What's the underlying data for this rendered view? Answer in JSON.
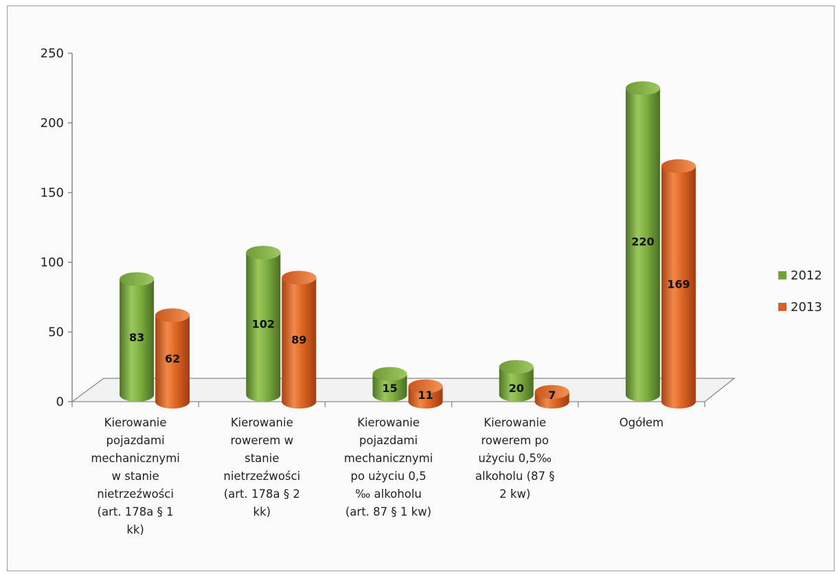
{
  "chart_data": {
    "type": "bar",
    "title": "",
    "xlabel": "",
    "ylabel": "",
    "ylim": [
      0,
      250
    ],
    "yticks": [
      0,
      50,
      100,
      150,
      200,
      250
    ],
    "grid": false,
    "legend_position": "right",
    "categories": [
      [
        "Kierowanie",
        "pojazdami",
        "mechanicznymi",
        "w stanie",
        "nietrzeźwości",
        "(art. 178a § 1",
        "kk)"
      ],
      [
        "Kierowanie",
        "rowerem w",
        "stanie",
        "nietrzeźwości",
        "(art. 178a §  2",
        "kk)"
      ],
      [
        "Kierowanie",
        "pojazdami",
        "mechanicznymi",
        "po użyciu 0,5",
        "‰ alkoholu",
        "(art. 87 § 1 kw)"
      ],
      [
        "Kierowanie",
        "rowerem po",
        "użyciu 0,5‰",
        "alkoholu (87 §",
        "2 kw)"
      ],
      [
        "Ogółem"
      ]
    ],
    "series": [
      {
        "name": "2012",
        "color": "#76a03a",
        "values": [
          83,
          102,
          15,
          20,
          220
        ]
      },
      {
        "name": "2013",
        "color": "#d9601f",
        "values": [
          62,
          89,
          11,
          7,
          169
        ]
      }
    ]
  }
}
